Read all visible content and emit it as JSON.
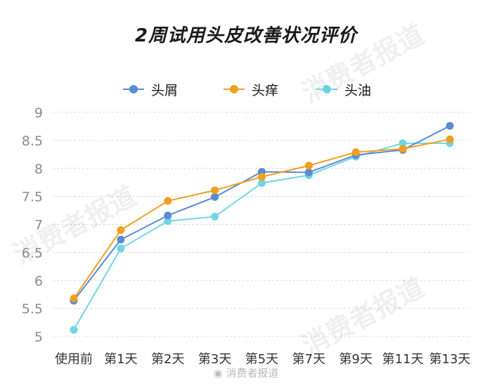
{
  "chart_data": {
    "type": "line",
    "title": "2周试用头皮改善状况评价",
    "categories": [
      "使用前",
      "第1天",
      "第2天",
      "第3天",
      "第5天",
      "第7天",
      "第9天",
      "第11天",
      "第13天"
    ],
    "ylim": [
      5,
      9
    ],
    "yticks": [
      "5",
      "5.5",
      "6",
      "6.5",
      "7",
      "7.5",
      "8",
      "8.5",
      "9"
    ],
    "grid": true,
    "legend_position": "top",
    "series": [
      {
        "name": "头屑",
        "color": "#5b8bd0",
        "values": [
          5.64,
          6.73,
          7.16,
          7.49,
          7.94,
          7.93,
          8.24,
          8.33,
          8.76
        ]
      },
      {
        "name": "头痒",
        "color": "#f0a020",
        "values": [
          5.68,
          6.9,
          7.42,
          7.61,
          7.85,
          8.05,
          8.29,
          8.35,
          8.52
        ]
      },
      {
        "name": "头油",
        "color": "#6fd6e4",
        "values": [
          5.12,
          6.57,
          7.06,
          7.14,
          7.74,
          7.88,
          8.21,
          8.45,
          8.45
        ]
      }
    ]
  },
  "watermark": {
    "text": "消费者报道",
    "footer": "消费者报道"
  }
}
